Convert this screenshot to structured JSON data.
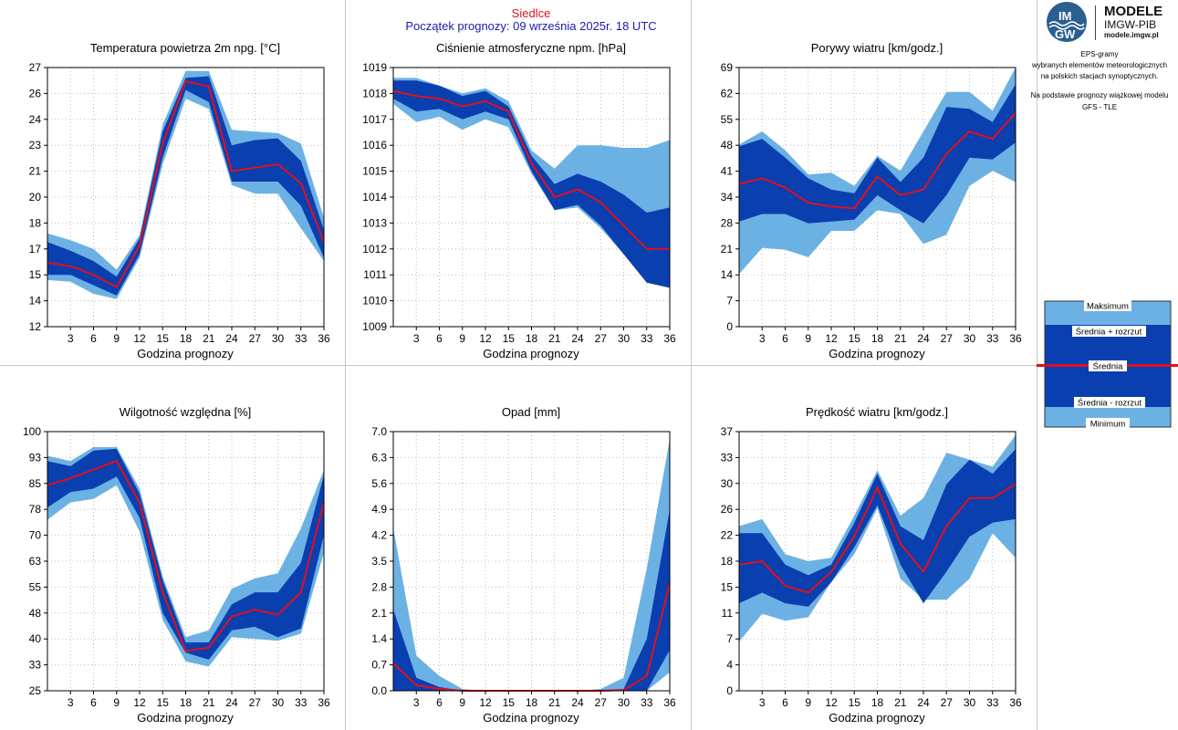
{
  "header": {
    "station": "Siedlce",
    "forecast_start": "Początek prognozy: 09 września 2025r. 18 UTC"
  },
  "sidebar": {
    "logo_title": "MODELE",
    "logo_subtitle": "IMGW-PIB",
    "logo_url": "modele.imgw.pl",
    "logo_mark_top": "IM",
    "logo_mark_bottom": "GW",
    "desc_lines": [
      "EPS-gramy",
      "wybranych elementów meteorologicznych",
      "na polskich stacjach  synoptycznych."
    ],
    "model_lines": [
      "Na podstawie prognozy wiązkowej modelu",
      "GFS - TLE"
    ]
  },
  "legend": {
    "max": "Maksimum",
    "mean_plus": "Średnia + rozrzut",
    "mean": "Średnia",
    "mean_minus": "Średnia - rozrzut",
    "min": "Minimum"
  },
  "colors": {
    "outer_band": "#6cb1e4",
    "inner_band": "#0a3fb0",
    "mean_line": "#e0101e",
    "grid": "#bcbcbc",
    "header_red": "#e0101e",
    "header_blue": "#1a1ab4"
  },
  "chart_data": [
    {
      "type": "area",
      "title": "Temperatura powietrza 2m npg. [°C]",
      "xlabel": "Godzina prognozy",
      "x": [
        0,
        3,
        6,
        9,
        12,
        15,
        18,
        21,
        24,
        27,
        30,
        33,
        36
      ],
      "ylim": [
        12,
        27
      ],
      "yticks": [
        "12",
        "14",
        "15",
        "17",
        "18",
        "20",
        "21",
        "23",
        "24",
        "26",
        "27"
      ],
      "yticks_v": [
        12,
        13.5,
        15,
        16.5,
        18,
        19.5,
        21,
        22.5,
        24,
        25.5,
        27
      ],
      "xticks": [
        3,
        6,
        9,
        12,
        15,
        18,
        21,
        24,
        27,
        30,
        33,
        36
      ],
      "series": [
        {
          "name": "Maksimum",
          "values": [
            17.4,
            17.0,
            16.5,
            15.3,
            17.3,
            23.7,
            26.8,
            26.8,
            23.4,
            23.3,
            23.2,
            22.6,
            18.3
          ]
        },
        {
          "name": "Średnia + rozrzut",
          "values": [
            16.9,
            16.4,
            15.8,
            14.9,
            17.1,
            23.3,
            26.4,
            26.5,
            22.5,
            22.8,
            22.9,
            21.6,
            17.6
          ]
        },
        {
          "name": "Średnia",
          "values": [
            15.7,
            15.5,
            15.0,
            14.3,
            16.7,
            22.6,
            26.2,
            25.9,
            21.0,
            21.2,
            21.4,
            20.3,
            16.9
          ]
        },
        {
          "name": "Średnia - rozrzut",
          "values": [
            15.0,
            15.0,
            14.4,
            13.8,
            16.2,
            21.8,
            25.7,
            25.0,
            20.4,
            20.4,
            20.4,
            19.0,
            16.0
          ]
        },
        {
          "name": "Minimum",
          "values": [
            14.7,
            14.6,
            13.9,
            13.6,
            16.0,
            21.4,
            25.2,
            24.6,
            20.2,
            19.7,
            19.7,
            17.7,
            15.8
          ]
        }
      ]
    },
    {
      "type": "area",
      "title": "Ciśnienie atmosferyczne npm. [hPa]",
      "xlabel": "Godzina prognozy",
      "x": [
        0,
        3,
        6,
        9,
        12,
        15,
        18,
        21,
        24,
        27,
        30,
        33,
        36
      ],
      "ylim": [
        1009,
        1019
      ],
      "yticks": [
        "1009",
        "1010",
        "1011",
        "1012",
        "1013",
        "1014",
        "1015",
        "1016",
        "1017",
        "1018",
        "1019"
      ],
      "yticks_v": [
        1009,
        1010,
        1011,
        1012,
        1013,
        1014,
        1015,
        1016,
        1017,
        1018,
        1019
      ],
      "xticks": [
        3,
        6,
        9,
        12,
        15,
        18,
        21,
        24,
        27,
        30,
        33,
        36
      ],
      "series": [
        {
          "name": "Maksimum",
          "values": [
            1018.6,
            1018.6,
            1018.3,
            1018.0,
            1018.2,
            1017.7,
            1015.8,
            1015.1,
            1016.0,
            1016.0,
            1015.9,
            1015.9,
            1016.2
          ]
        },
        {
          "name": "Średnia + rozrzut",
          "values": [
            1018.5,
            1018.5,
            1018.3,
            1017.9,
            1018.1,
            1017.5,
            1015.6,
            1014.5,
            1014.9,
            1014.6,
            1014.1,
            1013.4,
            1013.6
          ]
        },
        {
          "name": "Średnia",
          "values": [
            1018.1,
            1017.9,
            1017.8,
            1017.5,
            1017.7,
            1017.3,
            1015.3,
            1014.0,
            1014.3,
            1013.8,
            1012.9,
            1012.0,
            1012.0
          ]
        },
        {
          "name": "Średnia - rozrzut",
          "values": [
            1017.8,
            1017.3,
            1017.4,
            1017.0,
            1017.3,
            1017.0,
            1015.0,
            1013.5,
            1013.7,
            1012.9,
            1011.8,
            1010.7,
            1010.5
          ]
        },
        {
          "name": "Minimum",
          "values": [
            1017.6,
            1016.9,
            1017.1,
            1016.6,
            1017.0,
            1016.7,
            1014.9,
            1013.5,
            1013.6,
            1012.8,
            1011.8,
            1010.7,
            1010.5
          ]
        }
      ]
    },
    {
      "type": "area",
      "title": "Porywy wiatru [km/godz.]",
      "xlabel": "Godzina prognozy",
      "x": [
        0,
        3,
        6,
        9,
        12,
        15,
        18,
        21,
        24,
        27,
        30,
        33,
        36
      ],
      "ylim": [
        0,
        69
      ],
      "yticks": [
        "0",
        "7",
        "14",
        "21",
        "28",
        "34",
        "41",
        "48",
        "55",
        "62",
        "69"
      ],
      "yticks_v": [
        0,
        6.9,
        13.8,
        20.7,
        27.6,
        34.5,
        41.4,
        48.3,
        55.2,
        62.1,
        69
      ],
      "xticks": [
        3,
        6,
        9,
        12,
        15,
        18,
        21,
        24,
        27,
        30,
        33,
        36
      ],
      "series": [
        {
          "name": "Maksimum",
          "values": [
            48.5,
            52.0,
            47.0,
            40.5,
            41.0,
            37.5,
            45.5,
            41.5,
            52.0,
            62.5,
            62.5,
            57.5,
            69.0
          ]
        },
        {
          "name": "Średnia + rozrzut",
          "values": [
            48.0,
            50.0,
            45.0,
            39.5,
            36.5,
            35.5,
            45.0,
            38.5,
            45.0,
            58.5,
            58.0,
            54.5,
            64.5
          ]
        },
        {
          "name": "Średnia",
          "values": [
            38.0,
            39.5,
            37.0,
            33.0,
            32.0,
            31.5,
            40.0,
            35.0,
            36.5,
            46.0,
            52.0,
            50.0,
            57.0
          ]
        },
        {
          "name": "Średnia - rozrzut",
          "values": [
            28.0,
            30.0,
            30.0,
            27.5,
            28.0,
            28.5,
            35.0,
            31.0,
            27.5,
            35.0,
            45.0,
            44.5,
            49.0
          ]
        },
        {
          "name": "Minimum",
          "values": [
            14.0,
            21.0,
            20.5,
            18.5,
            25.5,
            25.5,
            31.0,
            30.0,
            22.0,
            24.5,
            37.5,
            41.5,
            38.5
          ]
        }
      ]
    },
    {
      "type": "area",
      "title": "Wilgotność względna [%]",
      "xlabel": "Godzina prognozy",
      "x": [
        0,
        3,
        6,
        9,
        12,
        15,
        18,
        21,
        24,
        27,
        30,
        33,
        36
      ],
      "ylim": [
        25,
        100
      ],
      "yticks": [
        "25",
        "33",
        "40",
        "48",
        "55",
        "63",
        "70",
        "78",
        "85",
        "93",
        "100"
      ],
      "yticks_v": [
        25,
        32.5,
        40,
        47.5,
        55,
        62.5,
        70,
        77.5,
        85,
        92.5,
        100
      ],
      "xticks": [
        3,
        6,
        9,
        12,
        15,
        18,
        21,
        24,
        27,
        30,
        33,
        36
      ],
      "series": [
        {
          "name": "Maksimum",
          "values": [
            93.0,
            91.5,
            95.5,
            95.5,
            83.5,
            58.0,
            40.5,
            42.5,
            54.5,
            57.5,
            59.0,
            72.0,
            89.0
          ]
        },
        {
          "name": "Średnia + rozrzut",
          "values": [
            91.5,
            90.0,
            94.5,
            95.0,
            82.0,
            57.0,
            39.0,
            39.0,
            50.0,
            53.5,
            53.5,
            62.0,
            87.5
          ]
        },
        {
          "name": "Średnia",
          "values": [
            84.5,
            86.5,
            89.0,
            91.5,
            79.5,
            53.5,
            36.5,
            37.5,
            46.5,
            48.5,
            47.0,
            53.5,
            79.5
          ]
        },
        {
          "name": "Średnia - rozrzut",
          "values": [
            78.0,
            82.5,
            83.5,
            87.0,
            75.0,
            47.5,
            36.0,
            34.0,
            42.5,
            43.5,
            40.5,
            43.0,
            70.0
          ]
        },
        {
          "name": "Minimum",
          "values": [
            74.5,
            79.5,
            80.5,
            84.5,
            71.0,
            45.5,
            33.5,
            32.0,
            40.5,
            40.0,
            39.5,
            41.5,
            65.0
          ]
        }
      ]
    },
    {
      "type": "area",
      "title": "Opad [mm]",
      "xlabel": "Godzina prognozy",
      "x": [
        0,
        3,
        6,
        9,
        12,
        15,
        18,
        21,
        24,
        27,
        30,
        33,
        36
      ],
      "ylim": [
        0,
        7
      ],
      "yticks": [
        "0.0",
        "0.7",
        "1.4",
        "2.1",
        "2.8",
        "3.5",
        "4.2",
        "4.9",
        "5.6",
        "6.3",
        "7.0"
      ],
      "yticks_v": [
        0,
        0.7,
        1.4,
        2.1,
        2.8,
        3.5,
        4.2,
        4.9,
        5.6,
        6.3,
        7.0
      ],
      "xticks": [
        3,
        6,
        9,
        12,
        15,
        18,
        21,
        24,
        27,
        30,
        33,
        36
      ],
      "series": [
        {
          "name": "Maksimum",
          "values": [
            4.4,
            0.95,
            0.4,
            0.05,
            0.0,
            0.0,
            0.0,
            0.0,
            0.0,
            0.05,
            0.35,
            3.3,
            6.8
          ]
        },
        {
          "name": "Średnia + rozrzut",
          "values": [
            2.2,
            0.35,
            0.1,
            0.0,
            0.0,
            0.0,
            0.0,
            0.0,
            0.0,
            0.0,
            0.05,
            1.4,
            4.9
          ]
        },
        {
          "name": "Średnia",
          "values": [
            0.75,
            0.15,
            0.05,
            0.0,
            0.0,
            0.0,
            0.0,
            0.0,
            0.0,
            0.0,
            0.02,
            0.4,
            2.9
          ]
        },
        {
          "name": "Średnia - rozrzut",
          "values": [
            0.0,
            0.0,
            0.0,
            0.0,
            0.0,
            0.0,
            0.0,
            0.0,
            0.0,
            0.0,
            0.0,
            0.0,
            1.1
          ]
        },
        {
          "name": "Minimum",
          "values": [
            0.0,
            0.0,
            0.0,
            0.0,
            0.0,
            0.0,
            0.0,
            0.0,
            0.0,
            0.0,
            0.0,
            0.0,
            0.5
          ]
        }
      ]
    },
    {
      "type": "area",
      "title": "Prędkość wiatru [km/godz.]",
      "xlabel": "Godzina prognozy",
      "x": [
        0,
        3,
        6,
        9,
        12,
        15,
        18,
        21,
        24,
        27,
        30,
        33,
        36
      ],
      "ylim": [
        0,
        37
      ],
      "yticks": [
        "0",
        "4",
        "7",
        "11",
        "15",
        "18",
        "22",
        "26",
        "30",
        "33",
        "37"
      ],
      "yticks_v": [
        0,
        3.7,
        7.4,
        11.1,
        14.8,
        18.5,
        22.2,
        25.9,
        29.6,
        33.3,
        37
      ],
      "xticks": [
        3,
        6,
        9,
        12,
        15,
        18,
        21,
        24,
        27,
        30,
        33,
        36
      ],
      "series": [
        {
          "name": "Maksimum",
          "values": [
            23.5,
            24.5,
            19.5,
            18.5,
            19.0,
            25.0,
            31.5,
            25.0,
            27.5,
            34.0,
            33.0,
            32.0,
            36.5
          ]
        },
        {
          "name": "Średnia + rozrzut",
          "values": [
            22.5,
            22.5,
            18.0,
            16.5,
            18.0,
            24.0,
            31.0,
            23.5,
            21.5,
            29.5,
            33.0,
            31.0,
            34.5
          ]
        },
        {
          "name": "Średnia",
          "values": [
            18.0,
            18.5,
            15.0,
            14.0,
            17.0,
            22.0,
            29.0,
            21.0,
            17.0,
            23.5,
            27.5,
            27.5,
            29.5
          ]
        },
        {
          "name": "Średnia - rozrzut",
          "values": [
            12.5,
            14.0,
            12.5,
            12.0,
            15.5,
            20.5,
            26.5,
            18.0,
            12.5,
            17.0,
            22.0,
            24.0,
            24.5
          ]
        },
        {
          "name": "Minimum",
          "values": [
            7.0,
            11.0,
            10.0,
            10.5,
            15.5,
            19.5,
            26.0,
            16.0,
            13.0,
            13.0,
            16.0,
            22.5,
            19.0
          ]
        }
      ]
    }
  ]
}
